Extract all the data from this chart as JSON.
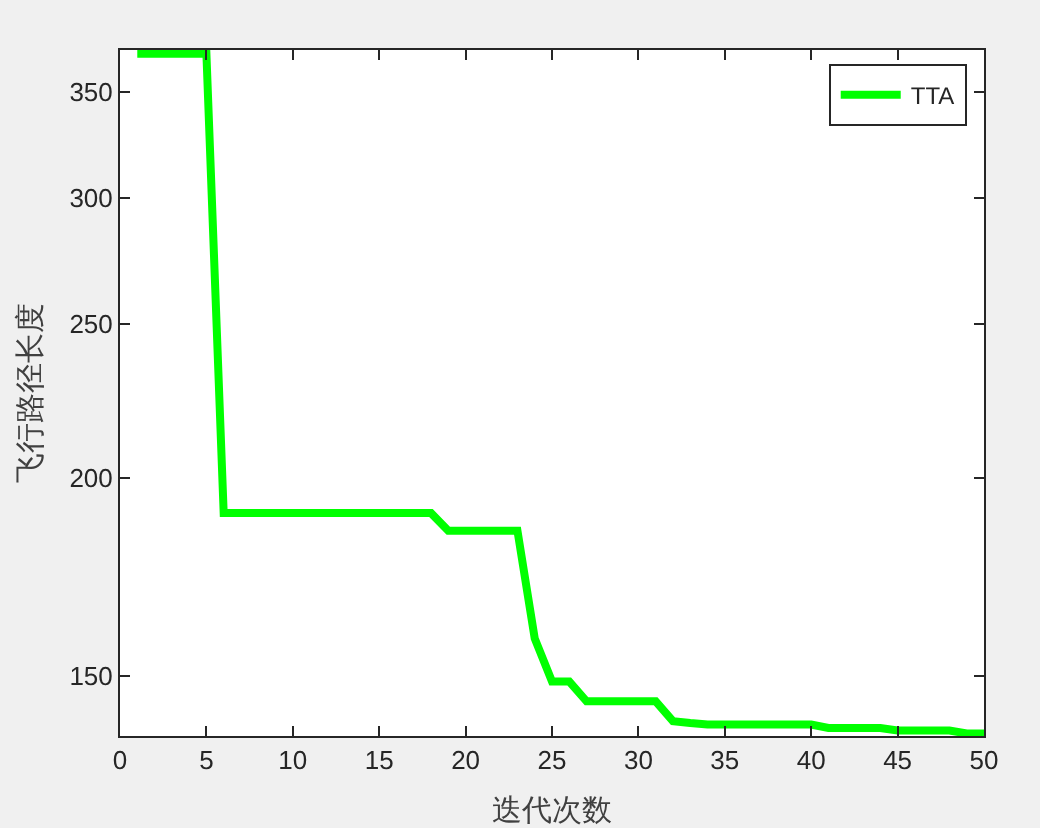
{
  "chart_data": {
    "type": "line",
    "xlabel": "迭代次数",
    "ylabel": "飞行路径长度",
    "x": [
      1,
      2,
      3,
      4,
      5,
      6,
      7,
      8,
      9,
      10,
      11,
      12,
      13,
      14,
      15,
      16,
      17,
      18,
      19,
      20,
      21,
      22,
      23,
      24,
      25,
      26,
      27,
      28,
      29,
      30,
      31,
      32,
      33,
      34,
      35,
      36,
      37,
      38,
      39,
      40,
      41,
      42,
      43,
      44,
      45,
      46,
      47,
      48,
      49,
      50
    ],
    "series": [
      {
        "name": "TTA",
        "color": "#00ff00",
        "values": [
          370,
          370,
          370,
          370,
          370,
          190,
          190,
          190,
          190,
          190,
          190,
          190,
          190,
          190,
          190,
          190,
          190,
          190,
          185.2,
          185.2,
          185.2,
          185.2,
          185.2,
          158.4,
          148.8,
          148.8,
          144.6,
          144.6,
          144.6,
          144.6,
          144.6,
          140.5,
          140.1,
          139.8,
          139.8,
          139.8,
          139.8,
          139.8,
          139.8,
          139.8,
          139.1,
          139.1,
          139.1,
          139.1,
          138.6,
          138.6,
          138.6,
          138.6,
          138,
          138
        ]
      }
    ],
    "xlim": [
      0,
      50
    ],
    "xticks": [
      0,
      5,
      10,
      15,
      20,
      25,
      30,
      35,
      40,
      45,
      50
    ],
    "ylim": [
      137.5,
      372
    ],
    "yticks": [
      150,
      200,
      250,
      300,
      350
    ],
    "log": "y",
    "grid": false,
    "legend": "top right",
    "marker": "none",
    "line_style": "solid"
  }
}
